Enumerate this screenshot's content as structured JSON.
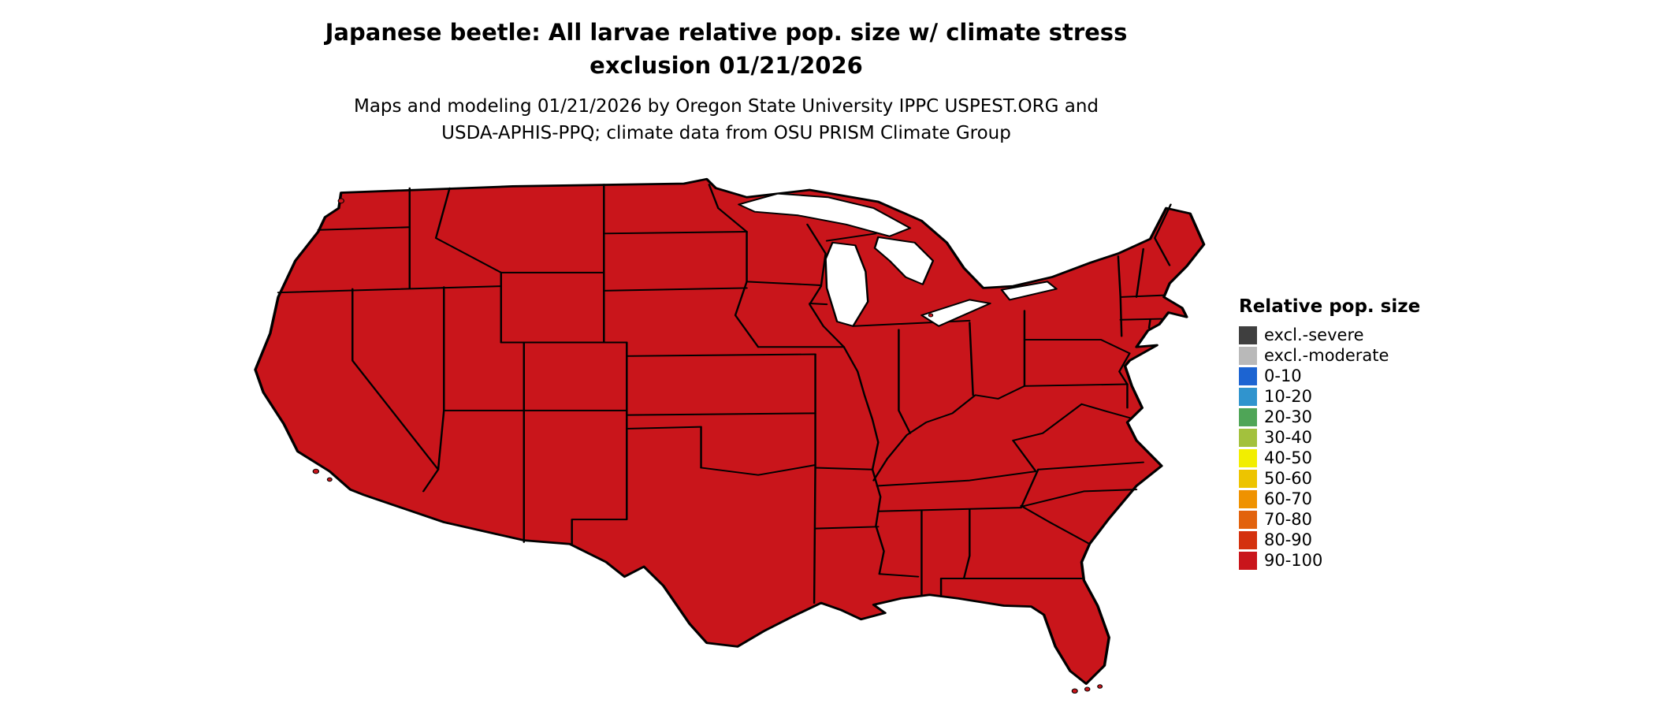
{
  "page": {
    "background": "#ffffff"
  },
  "title": {
    "line1": "Japanese beetle: All larvae relative pop. size w/ climate stress",
    "line2": "exclusion 01/21/2026"
  },
  "subtitle": {
    "line1": "Maps and modeling 01/21/2026 by Oregon State University IPPC USPEST.ORG and",
    "line2": "USDA-APHIS-PPQ; climate data from OSU PRISM Climate Group"
  },
  "map_data": {
    "type": "choropleth",
    "region": "Contiguous United States",
    "observation": "Entire contiguous US shown in the 90-100 relative population size class",
    "fill_color": "#c9151b",
    "border_color": "#000000",
    "lake_color": "#ffffff"
  },
  "legend": {
    "title": "Relative pop. size",
    "items": [
      {
        "label": "excl.-severe",
        "color": "#3f3f3f"
      },
      {
        "label": "excl.-moderate",
        "color": "#b9b9b9"
      },
      {
        "label": "0-10",
        "color": "#1c64d2"
      },
      {
        "label": "10-20",
        "color": "#3094ce"
      },
      {
        "label": "20-30",
        "color": "#4fa557"
      },
      {
        "label": "30-40",
        "color": "#a3c13d"
      },
      {
        "label": "40-50",
        "color": "#f2ee00"
      },
      {
        "label": "50-60",
        "color": "#edc400"
      },
      {
        "label": "60-70",
        "color": "#ef9200"
      },
      {
        "label": "70-80",
        "color": "#e2620d"
      },
      {
        "label": "80-90",
        "color": "#d4310e"
      },
      {
        "label": "90-100",
        "color": "#c9151b"
      }
    ]
  }
}
